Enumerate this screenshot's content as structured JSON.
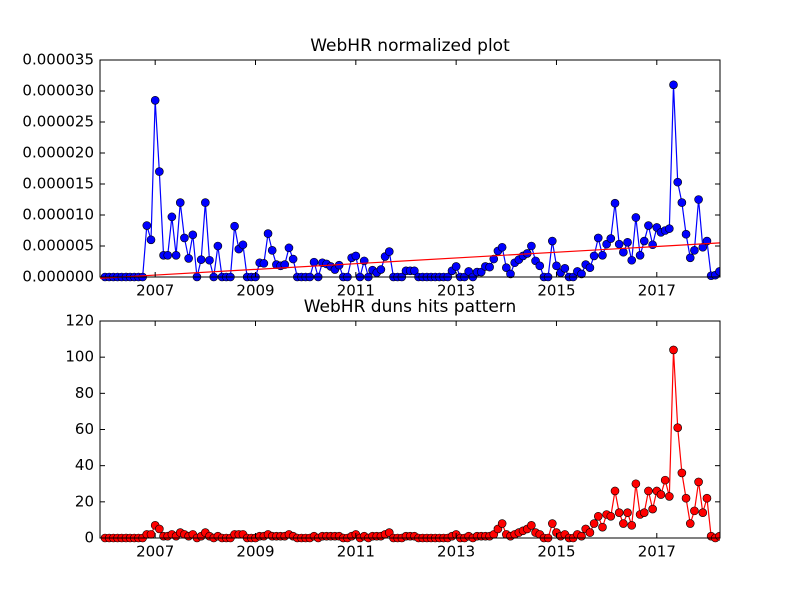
{
  "chart_data": [
    {
      "type": "line",
      "title": "WebHR normalized plot",
      "xlim": [
        2005.9,
        2018.26
      ],
      "xticks": [
        2007,
        2009,
        2011,
        2013,
        2015,
        2017
      ],
      "ylim": [
        0,
        3.5e-05
      ],
      "yticks": [
        {
          "value": 0,
          "label": "0.000000"
        },
        {
          "value": 5e-06,
          "label": "0.000005"
        },
        {
          "value": 1e-05,
          "label": "0.000010"
        },
        {
          "value": 1.5e-05,
          "label": "0.000015"
        },
        {
          "value": 2e-05,
          "label": "0.000020"
        },
        {
          "value": 2.5e-05,
          "label": "0.000025"
        },
        {
          "value": 3e-05,
          "label": "0.000030"
        },
        {
          "value": 3.5e-05,
          "label": "0.000035"
        }
      ],
      "x": [
        2006.0,
        2006.083,
        2006.167,
        2006.25,
        2006.333,
        2006.417,
        2006.5,
        2006.583,
        2006.667,
        2006.75,
        2006.833,
        2006.917,
        2007.0,
        2007.083,
        2007.167,
        2007.25,
        2007.333,
        2007.417,
        2007.5,
        2007.583,
        2007.667,
        2007.75,
        2007.833,
        2007.917,
        2008.0,
        2008.083,
        2008.167,
        2008.25,
        2008.333,
        2008.417,
        2008.5,
        2008.583,
        2008.667,
        2008.75,
        2008.833,
        2008.917,
        2009.0,
        2009.083,
        2009.167,
        2009.25,
        2009.333,
        2009.417,
        2009.5,
        2009.583,
        2009.667,
        2009.75,
        2009.833,
        2009.917,
        2010.0,
        2010.083,
        2010.167,
        2010.25,
        2010.333,
        2010.417,
        2010.5,
        2010.583,
        2010.667,
        2010.75,
        2010.833,
        2010.917,
        2011.0,
        2011.083,
        2011.167,
        2011.25,
        2011.333,
        2011.417,
        2011.5,
        2011.583,
        2011.667,
        2011.75,
        2011.833,
        2011.917,
        2012.0,
        2012.083,
        2012.167,
        2012.25,
        2012.333,
        2012.417,
        2012.5,
        2012.583,
        2012.667,
        2012.75,
        2012.833,
        2012.917,
        2013.0,
        2013.083,
        2013.167,
        2013.25,
        2013.333,
        2013.417,
        2013.5,
        2013.583,
        2013.667,
        2013.75,
        2013.833,
        2013.917,
        2014.0,
        2014.083,
        2014.167,
        2014.25,
        2014.333,
        2014.417,
        2014.5,
        2014.583,
        2014.667,
        2014.75,
        2014.833,
        2014.917,
        2015.0,
        2015.083,
        2015.167,
        2015.25,
        2015.333,
        2015.417,
        2015.5,
        2015.583,
        2015.667,
        2015.75,
        2015.833,
        2015.917,
        2016.0,
        2016.083,
        2016.167,
        2016.25,
        2016.333,
        2016.417,
        2016.5,
        2016.583,
        2016.667,
        2016.75,
        2016.833,
        2016.917,
        2017.0,
        2017.083,
        2017.167,
        2017.25,
        2017.333,
        2017.417,
        2017.5,
        2017.583,
        2017.667,
        2017.75,
        2017.833,
        2017.917,
        2018.0,
        2018.083,
        2018.167,
        2018.25
      ],
      "series": [
        {
          "color": "#0000ff",
          "marker": true,
          "values": [
            0,
            0,
            0,
            0,
            0,
            0,
            0,
            0,
            0,
            0,
            8.3e-06,
            6e-06,
            2.85e-05,
            1.7e-05,
            3.5e-06,
            3.5e-06,
            9.7e-06,
            3.5e-06,
            1.2e-05,
            6.3e-06,
            3e-06,
            6.8e-06,
            0,
            2.8e-06,
            1.2e-05,
            2.7e-06,
            0,
            5e-06,
            0,
            0,
            0,
            8.2e-06,
            4.5e-06,
            5.2e-06,
            0,
            0,
            0,
            2.3e-06,
            2.2e-06,
            7e-06,
            4.3e-06,
            2e-06,
            1.8e-06,
            2e-06,
            4.7e-06,
            2.9e-06,
            0,
            0,
            0,
            0,
            2.4e-06,
            0,
            2.3e-06,
            2.1e-06,
            1.7e-06,
            1.2e-06,
            1.9e-06,
            0,
            0,
            3.1e-06,
            3.4e-06,
            0,
            2.6e-06,
            0,
            1.1e-06,
            7e-07,
            1.2e-06,
            3.3e-06,
            4.1e-06,
            0,
            0,
            0,
            1e-06,
            1e-06,
            1e-06,
            0,
            0,
            0,
            0,
            0,
            0,
            0,
            0,
            1e-06,
            1.7e-06,
            0,
            0,
            9e-07,
            0,
            8e-07,
            8e-07,
            1.7e-06,
            1.6e-06,
            2.9e-06,
            4.2e-06,
            4.8e-06,
            1.5e-06,
            5e-07,
            2.3e-06,
            2.8e-06,
            3.4e-06,
            3.8e-06,
            5e-06,
            2.6e-06,
            1.8e-06,
            0,
            0,
            5.8e-06,
            1.8e-06,
            7e-07,
            1.4e-06,
            0,
            0,
            9e-07,
            5e-07,
            2e-06,
            1.5e-06,
            3.4e-06,
            6.3e-06,
            3.5e-06,
            5.3e-06,
            6.2e-06,
            1.19e-05,
            5.3e-06,
            4e-06,
            5.6e-06,
            2.7e-06,
            9.6e-06,
            3.5e-06,
            5.8e-06,
            8.3e-06,
            5.2e-06,
            8e-06,
            7.2e-06,
            7.5e-06,
            7.8e-06,
            3.1e-05,
            1.53e-05,
            1.2e-05,
            6.9e-06,
            3.1e-06,
            4.3e-06,
            1.25e-05,
            4.8e-06,
            5.8e-06,
            2e-07,
            3e-07,
            9e-07
          ]
        },
        {
          "color": "#ff0000",
          "marker": false,
          "x": [
            2005.9,
            2018.26
          ],
          "values": [
            -2e-07,
            5.5e-06
          ]
        }
      ]
    },
    {
      "type": "line",
      "title": "WebHR duns hits pattern",
      "xlim": [
        2005.9,
        2018.26
      ],
      "xticks": [
        2007,
        2009,
        2011,
        2013,
        2015,
        2017
      ],
      "ylim": [
        0,
        120
      ],
      "yticks": [
        0,
        20,
        40,
        60,
        80,
        100,
        120
      ],
      "x": [
        2006.0,
        2006.083,
        2006.167,
        2006.25,
        2006.333,
        2006.417,
        2006.5,
        2006.583,
        2006.667,
        2006.75,
        2006.833,
        2006.917,
        2007.0,
        2007.083,
        2007.167,
        2007.25,
        2007.333,
        2007.417,
        2007.5,
        2007.583,
        2007.667,
        2007.75,
        2007.833,
        2007.917,
        2008.0,
        2008.083,
        2008.167,
        2008.25,
        2008.333,
        2008.417,
        2008.5,
        2008.583,
        2008.667,
        2008.75,
        2008.833,
        2008.917,
        2009.0,
        2009.083,
        2009.167,
        2009.25,
        2009.333,
        2009.417,
        2009.5,
        2009.583,
        2009.667,
        2009.75,
        2009.833,
        2009.917,
        2010.0,
        2010.083,
        2010.167,
        2010.25,
        2010.333,
        2010.417,
        2010.5,
        2010.583,
        2010.667,
        2010.75,
        2010.833,
        2010.917,
        2011.0,
        2011.083,
        2011.167,
        2011.25,
        2011.333,
        2011.417,
        2011.5,
        2011.583,
        2011.667,
        2011.75,
        2011.833,
        2011.917,
        2012.0,
        2012.083,
        2012.167,
        2012.25,
        2012.333,
        2012.417,
        2012.5,
        2012.583,
        2012.667,
        2012.75,
        2012.833,
        2012.917,
        2013.0,
        2013.083,
        2013.167,
        2013.25,
        2013.333,
        2013.417,
        2013.5,
        2013.583,
        2013.667,
        2013.75,
        2013.833,
        2013.917,
        2014.0,
        2014.083,
        2014.167,
        2014.25,
        2014.333,
        2014.417,
        2014.5,
        2014.583,
        2014.667,
        2014.75,
        2014.833,
        2014.917,
        2015.0,
        2015.083,
        2015.167,
        2015.25,
        2015.333,
        2015.417,
        2015.5,
        2015.583,
        2015.667,
        2015.75,
        2015.833,
        2015.917,
        2016.0,
        2016.083,
        2016.167,
        2016.25,
        2016.333,
        2016.417,
        2016.5,
        2016.583,
        2016.667,
        2016.75,
        2016.833,
        2016.917,
        2017.0,
        2017.083,
        2017.167,
        2017.25,
        2017.333,
        2017.417,
        2017.5,
        2017.583,
        2017.667,
        2017.75,
        2017.833,
        2017.917,
        2018.0,
        2018.083,
        2018.167,
        2018.25
      ],
      "series": [
        {
          "color": "#ff0000",
          "marker": true,
          "values": [
            0,
            0,
            0,
            0,
            0,
            0,
            0,
            0,
            0,
            0,
            2,
            2,
            7,
            5,
            1,
            1,
            2,
            1,
            3,
            2,
            1,
            2,
            0,
            1,
            3,
            1,
            0,
            1,
            0,
            0,
            0,
            2,
            2,
            2,
            0,
            0,
            0,
            1,
            1,
            2,
            1,
            1,
            1,
            1,
            2,
            1,
            0,
            0,
            0,
            0,
            1,
            0,
            1,
            1,
            1,
            1,
            1,
            0,
            0,
            1,
            2,
            0,
            1,
            0,
            1,
            1,
            1,
            2,
            3,
            0,
            0,
            0,
            1,
            1,
            1,
            0,
            0,
            0,
            0,
            0,
            0,
            0,
            0,
            1,
            2,
            0,
            0,
            1,
            0,
            1,
            1,
            1,
            1,
            2,
            5,
            8,
            2,
            1,
            2,
            3,
            4,
            5,
            7,
            3,
            2,
            0,
            0,
            8,
            3,
            1,
            2,
            0,
            0,
            2,
            1,
            5,
            3,
            8,
            12,
            6,
            13,
            12,
            26,
            14,
            8,
            14,
            7,
            30,
            13,
            14,
            26,
            16,
            26,
            24,
            32,
            23,
            104,
            61,
            36,
            22,
            8,
            15,
            31,
            14,
            22,
            1,
            0,
            1
          ]
        }
      ]
    }
  ]
}
